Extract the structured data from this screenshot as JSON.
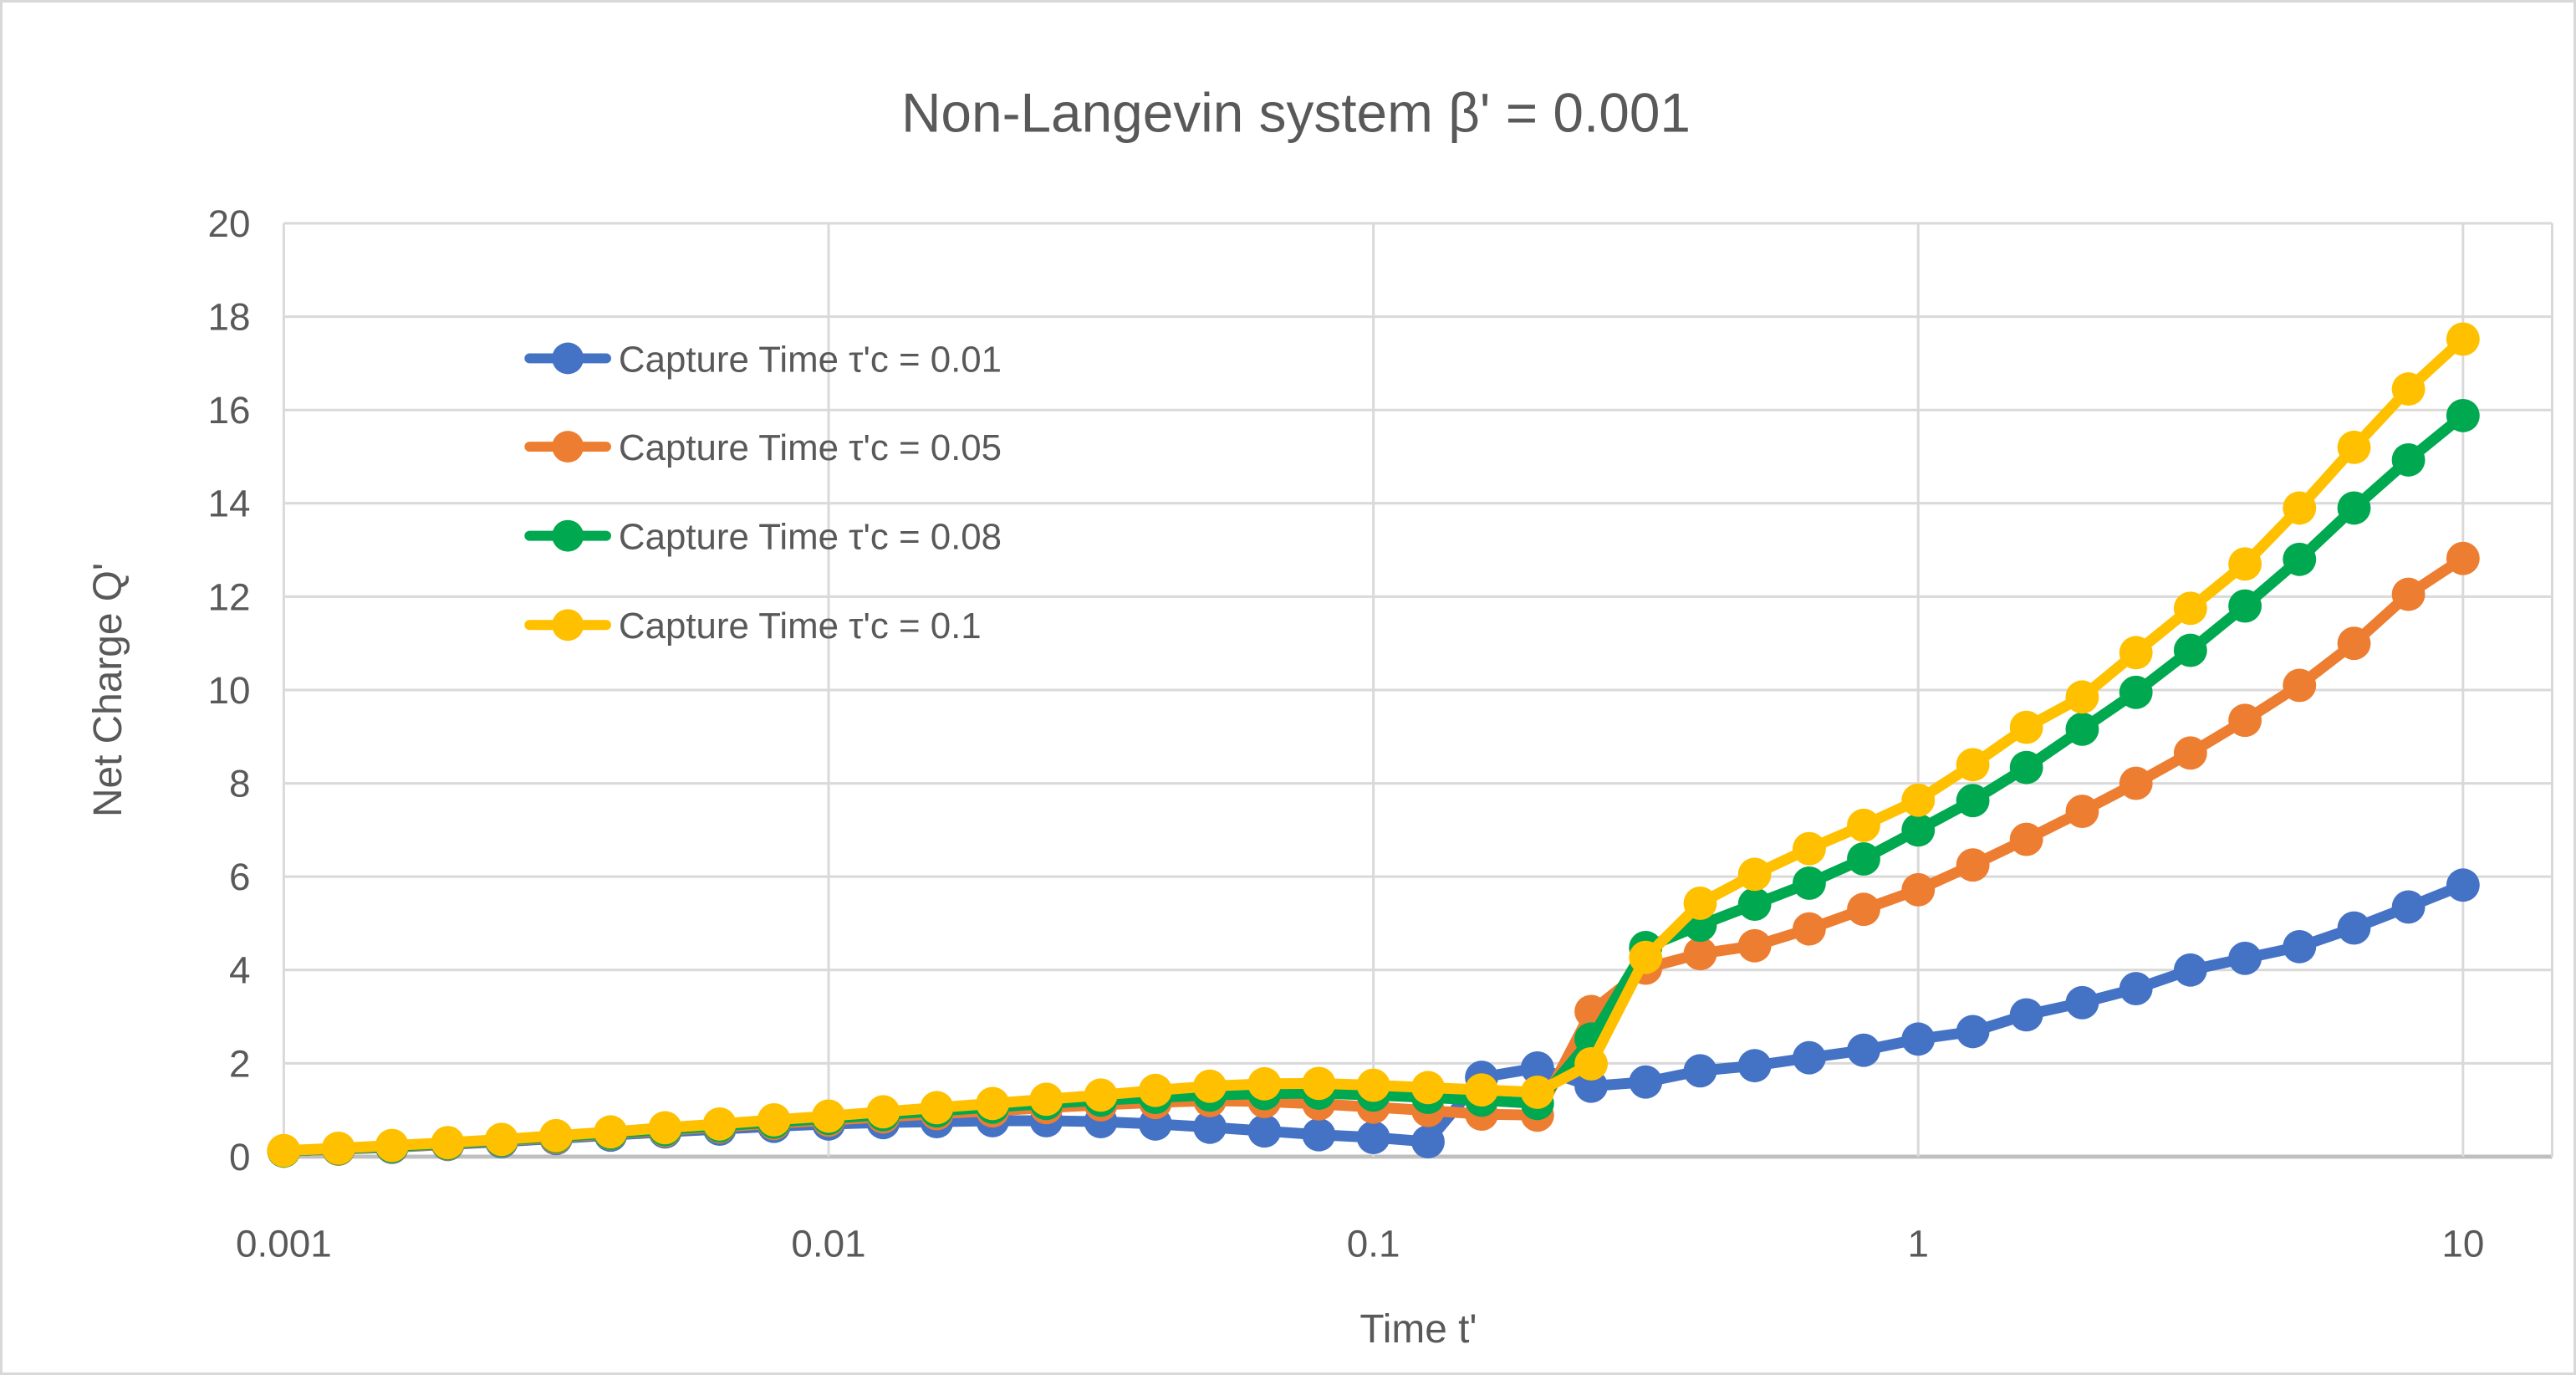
{
  "title": "Non-Langevin system β' = 0.001",
  "colors": {
    "series_blue": "#4472C4",
    "series_orange": "#ED7D31",
    "series_green": "#00A84F",
    "series_yellow": "#FFC000",
    "text_gray": "#595959",
    "gridline_gray": "#D9D9D9",
    "axis_line_gray": "#BFBFBF",
    "frame_border": "#D8D8D8"
  },
  "chart_data": {
    "type": "line",
    "title": "Non-Langevin system β' = 0.001",
    "xlabel": "Time t'",
    "ylabel": "Net Charge Q'",
    "x_scale": "log",
    "xlim": [
      0.001,
      10
    ],
    "ylim": [
      0,
      20
    ],
    "y_tick_step": 2,
    "grid": true,
    "legend_position": "inside-top-left",
    "x_ticks": [
      0.001,
      0.01,
      0.1,
      1,
      10
    ],
    "x_tick_labels": [
      "0.001",
      "0.01",
      "0.1",
      "1",
      "10"
    ],
    "y_tick_labels": [
      "0",
      "2",
      "4",
      "6",
      "8",
      "10",
      "12",
      "14",
      "16",
      "18",
      "20"
    ],
    "x": [
      0.001,
      0.00126,
      0.00158,
      0.002,
      0.00251,
      0.00316,
      0.00398,
      0.00501,
      0.00631,
      0.00794,
      0.01,
      0.0126,
      0.0158,
      0.02,
      0.0251,
      0.0316,
      0.0398,
      0.0501,
      0.0631,
      0.0794,
      0.1,
      0.126,
      0.158,
      0.2,
      0.251,
      0.316,
      0.398,
      0.501,
      0.631,
      0.794,
      1,
      1.26,
      1.58,
      2,
      2.51,
      3.16,
      3.98,
      5.01,
      6.31,
      7.94,
      10
    ],
    "series": [
      {
        "name": "Capture Time τ'c = 0.01",
        "color": "#4472C4",
        "values": [
          0.12,
          0.16,
          0.2,
          0.26,
          0.32,
          0.39,
          0.46,
          0.53,
          0.59,
          0.65,
          0.7,
          0.73,
          0.75,
          0.77,
          0.77,
          0.75,
          0.7,
          0.63,
          0.55,
          0.47,
          0.41,
          0.32,
          1.7,
          1.9,
          1.51,
          1.6,
          1.84,
          1.95,
          2.12,
          2.28,
          2.52,
          2.68,
          3.04,
          3.3,
          3.6,
          4.0,
          4.25,
          4.5,
          4.9,
          5.35,
          5.82
        ]
      },
      {
        "name": "Capture Time τ'c = 0.05",
        "color": "#ED7D31",
        "values": [
          0.12,
          0.16,
          0.21,
          0.27,
          0.34,
          0.41,
          0.49,
          0.56,
          0.64,
          0.71,
          0.78,
          0.85,
          0.92,
          0.98,
          1.05,
          1.11,
          1.16,
          1.2,
          1.18,
          1.13,
          1.06,
          0.99,
          0.91,
          0.89,
          3.11,
          4.04,
          4.35,
          4.52,
          4.88,
          5.3,
          5.72,
          6.25,
          6.8,
          7.4,
          8.0,
          8.65,
          9.35,
          10.1,
          11.0,
          12.05,
          12.82
        ]
      },
      {
        "name": "Capture Time τ'c = 0.08",
        "color": "#00A84F",
        "values": [
          0.12,
          0.17,
          0.22,
          0.28,
          0.35,
          0.43,
          0.5,
          0.58,
          0.66,
          0.74,
          0.82,
          0.9,
          0.98,
          1.06,
          1.14,
          1.21,
          1.27,
          1.32,
          1.35,
          1.36,
          1.32,
          1.27,
          1.21,
          1.14,
          2.52,
          4.48,
          4.96,
          5.41,
          5.86,
          6.38,
          7.0,
          7.63,
          8.34,
          9.16,
          9.95,
          10.85,
          11.8,
          12.8,
          13.9,
          14.93,
          15.88
        ]
      },
      {
        "name": "Capture Time τ'c = 0.1",
        "color": "#FFC000",
        "values": [
          0.13,
          0.18,
          0.24,
          0.3,
          0.37,
          0.45,
          0.53,
          0.62,
          0.7,
          0.79,
          0.87,
          0.96,
          1.05,
          1.14,
          1.23,
          1.32,
          1.42,
          1.51,
          1.56,
          1.57,
          1.53,
          1.48,
          1.43,
          1.38,
          1.99,
          4.27,
          5.43,
          6.05,
          6.6,
          7.1,
          7.64,
          8.4,
          9.2,
          9.85,
          10.8,
          11.75,
          12.7,
          13.9,
          15.2,
          16.45,
          17.52
        ]
      }
    ]
  }
}
